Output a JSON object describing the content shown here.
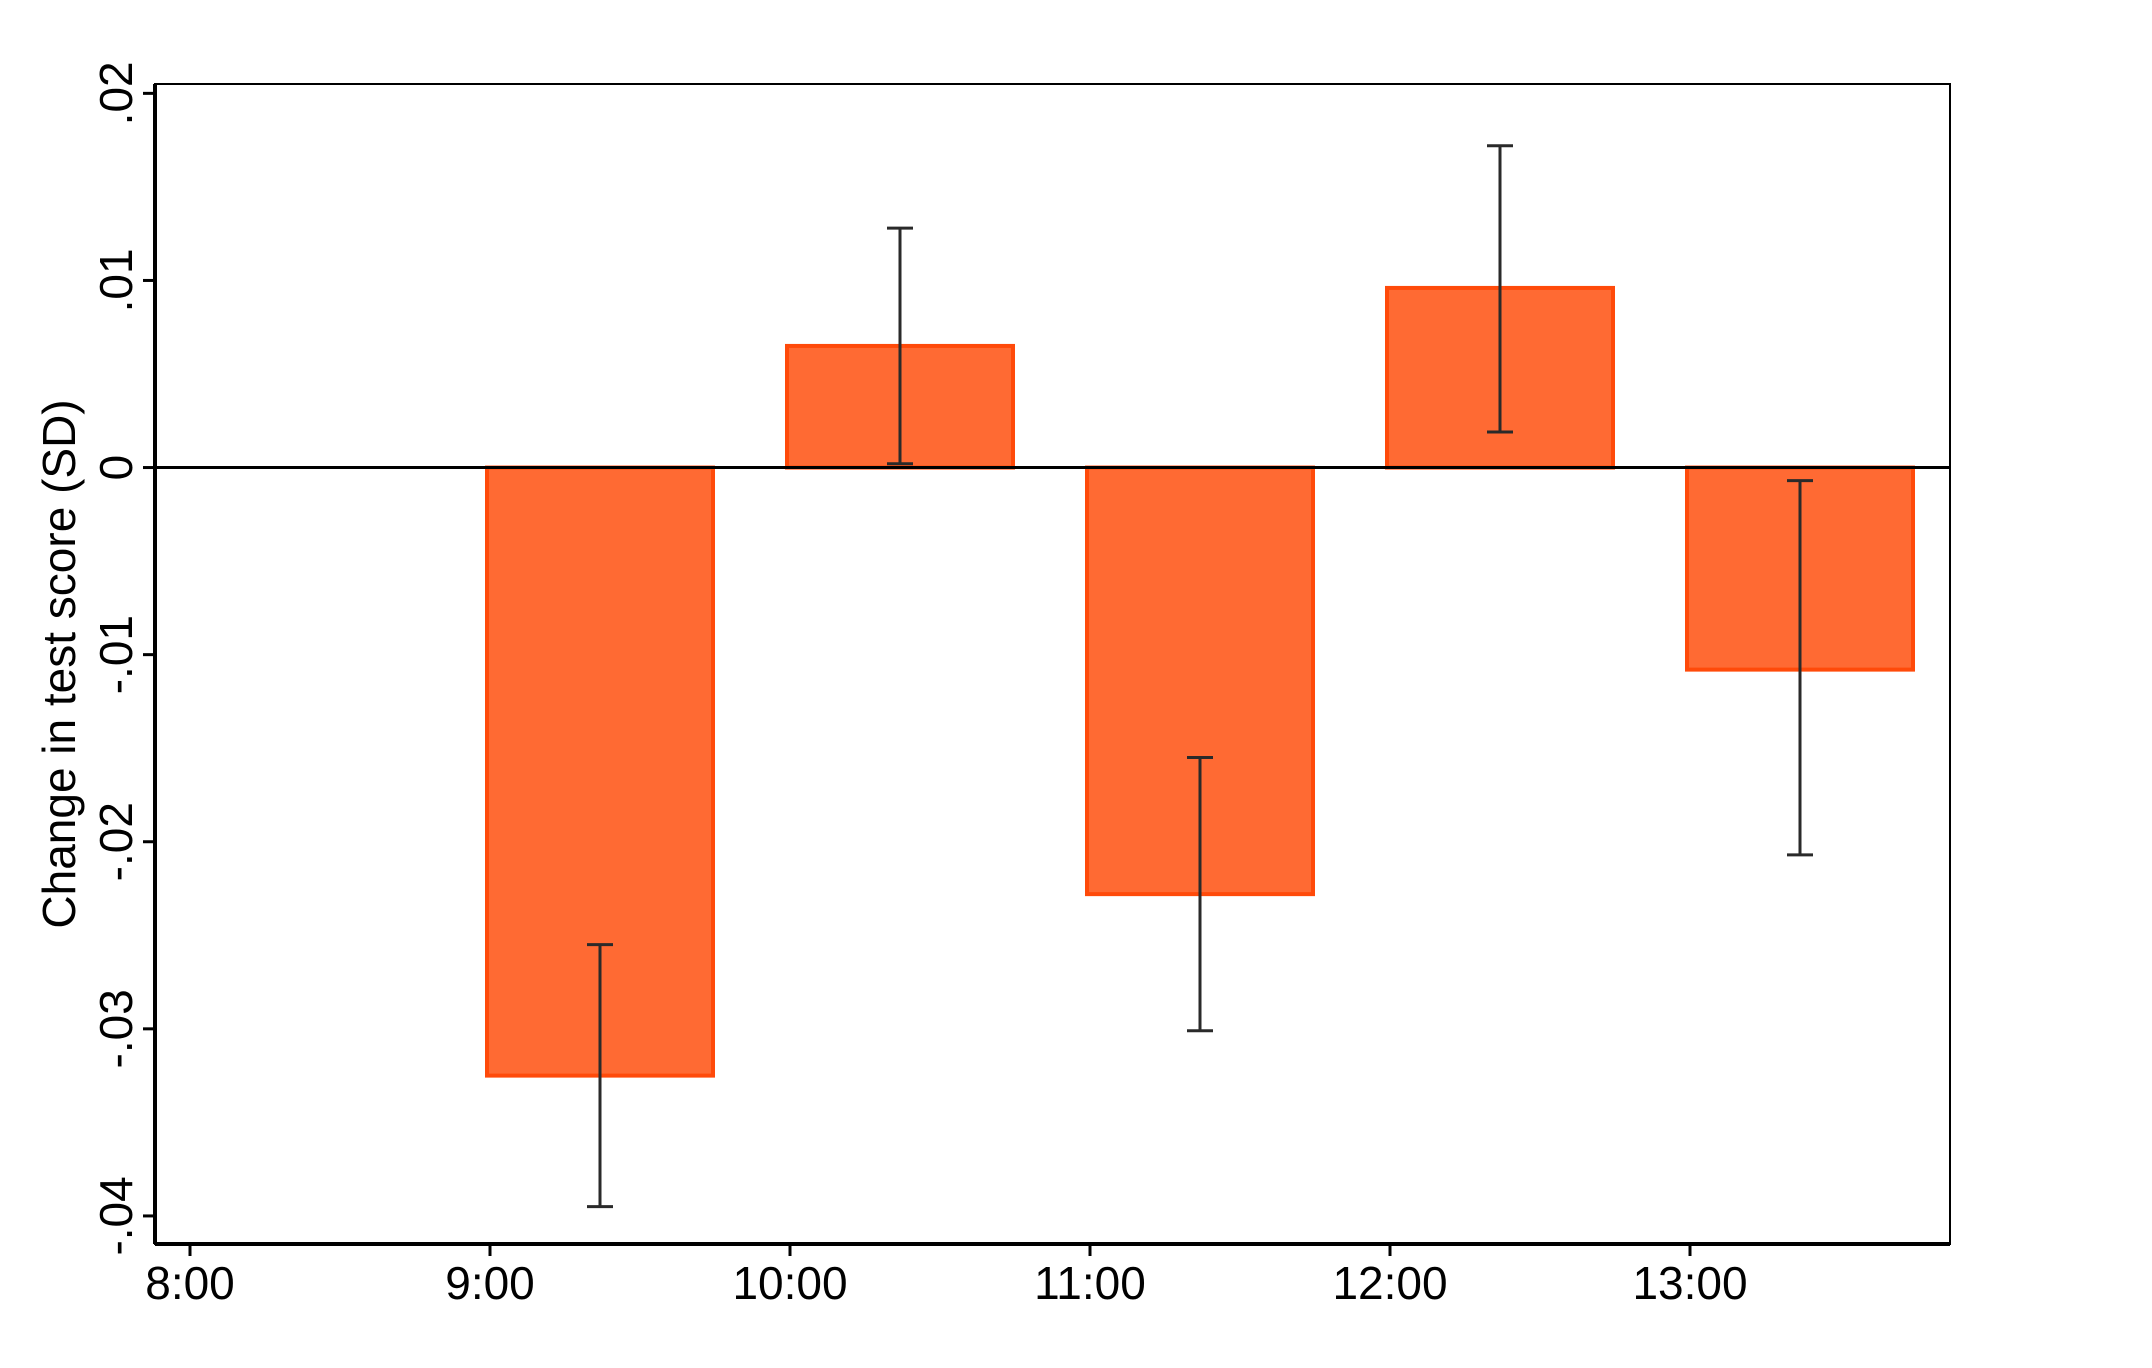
{
  "chart_data": {
    "type": "bar",
    "title": "",
    "xlabel": "",
    "ylabel": "Change in test score (SD)",
    "categories": [
      "9:00",
      "10:00",
      "11:00",
      "12:00",
      "13:00"
    ],
    "values": [
      -0.0325,
      0.0065,
      -0.0228,
      0.0096,
      -0.0108
    ],
    "error_low": [
      -0.0395,
      0.0002,
      -0.0301,
      0.0019,
      -0.0207
    ],
    "error_high": [
      -0.0255,
      0.0128,
      -0.0155,
      0.0172,
      -0.0007
    ],
    "x_tick_labels": [
      "8:00",
      "9:00",
      "10:00",
      "11:00",
      "12:00",
      "13:00"
    ],
    "y_ticks": [
      -0.04,
      -0.03,
      -0.02,
      -0.01,
      0,
      0.01,
      0.02
    ],
    "y_tick_labels": [
      "-.04",
      "-.03",
      "-.02",
      "-.01",
      "0",
      ".01",
      ".02"
    ],
    "ylim": [
      -0.0415,
      0.0205
    ],
    "grid": false,
    "colors": {
      "bar_fill": "#ff6a33",
      "bar_edge": "#ff4a0a",
      "error_bar": "#2a2a2a",
      "axis": "#000000"
    }
  }
}
